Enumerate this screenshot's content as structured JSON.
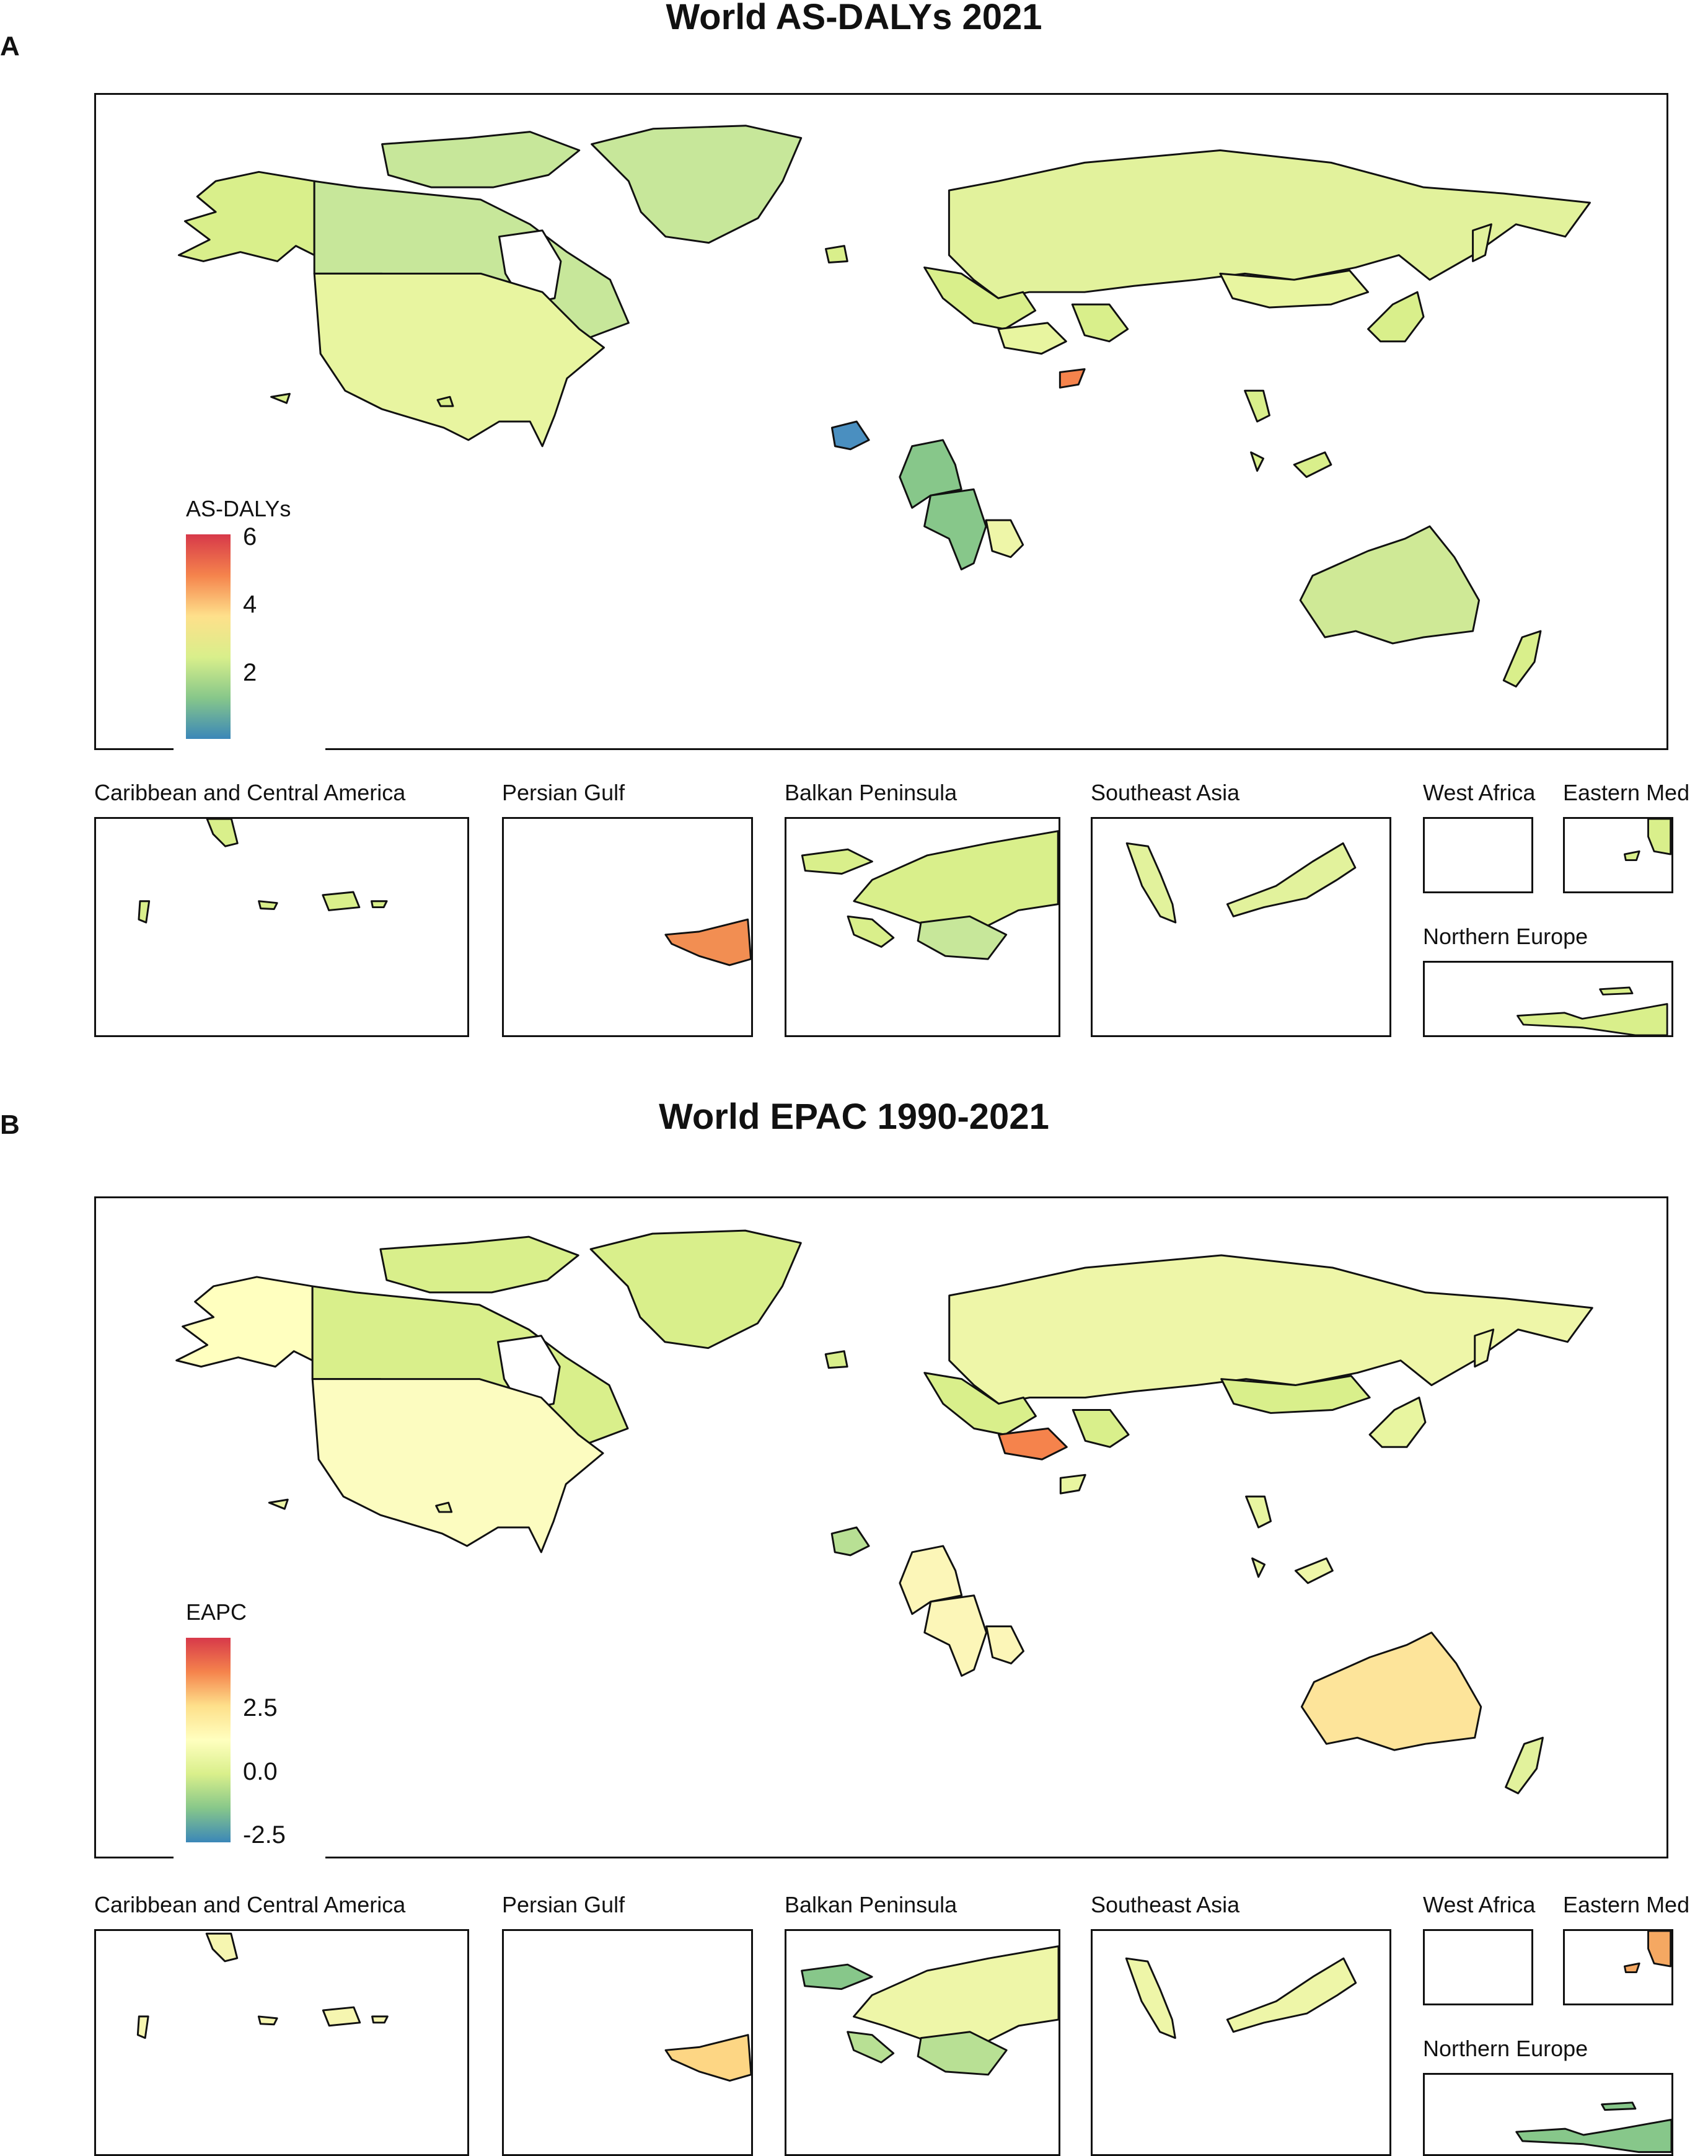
{
  "panels": [
    {
      "letter": "A",
      "title": "World AS-DALYs 2021",
      "legend": {
        "title": "AS-DALYs",
        "ticks": [
          "6",
          "4",
          "2"
        ],
        "tick_values": [
          6,
          4,
          2
        ],
        "range": [
          0,
          6
        ],
        "colors": [
          "#d7394a",
          "#f5834c",
          "#fee08b",
          "#d9ef8b",
          "#87c78a",
          "#3b87b8"
        ]
      },
      "regions": {
        "alaska": "#d9ef8b",
        "canada": "#c7e79a",
        "usa": "#e8f5a0",
        "greenland": "#c7e79a",
        "russia": "#e2f29c",
        "mongolia": "#e8f5a0",
        "japan": "#d9ef8b",
        "europe": "#d9ef8b",
        "turkey": "#e8f5a0",
        "iran": "#d9ef8b",
        "yemen": "#f5834c",
        "caribbean": "#d9ef8b",
        "west_africa": "#4a8fc0",
        "central_africa_n": "#87c78a",
        "central_africa_s": "#87c78a",
        "east_africa": "#eef6a8",
        "philippines": "#d9ef8b",
        "malaysia": "#d9ef8b",
        "australia": "#cfe996",
        "new_zealand": "#d9ef8b"
      },
      "insets": {
        "caribbean": {
          "title": "Caribbean and Central America",
          "fill": "#d9ef8b"
        },
        "persian_gulf": {
          "title": "Persian Gulf",
          "fill": "#f28e52"
        },
        "balkan": {
          "title": "Balkan Peninsula",
          "fill": "#d9ef8b"
        },
        "southeast_asia": {
          "title": "Southeast Asia",
          "fill": "#e2f29c"
        },
        "west_africa": {
          "title": "West Africa"
        },
        "eastern_med": {
          "title": "Eastern Med",
          "fill": "#d9ef8b"
        },
        "northern_europe": {
          "title": "Northern Europe",
          "fill": "#d9ef8b"
        }
      }
    },
    {
      "letter": "B",
      "title": "World EPAC 1990-2021",
      "legend": {
        "title": "EAPC",
        "ticks": [
          "2.5",
          "0.0",
          "-2.5"
        ],
        "tick_values": [
          2.5,
          0.0,
          -2.5
        ],
        "range": [
          -3,
          5
        ],
        "colors": [
          "#d7394a",
          "#f5834c",
          "#fee08b",
          "#ffffbf",
          "#d9ef8b",
          "#87c78a",
          "#3b87b8"
        ]
      },
      "regions": {
        "alaska": "#ffffbf",
        "canada": "#d9ef8b",
        "usa": "#fcfcc0",
        "greenland": "#d9ef8b",
        "russia": "#eef6a8",
        "mongolia": "#d9ef8b",
        "japan": "#e8f5a0",
        "europe": "#d9ef8b",
        "turkey": "#f5834c",
        "iran": "#d9ef8b",
        "yemen": "#e8f5a0",
        "caribbean": "#eef6a8",
        "west_africa": "#b8e094",
        "central_africa_n": "#fcf6b8",
        "central_africa_s": "#fcf6b8",
        "east_africa": "#fcf6b8",
        "philippines": "#e8f5a0",
        "malaysia": "#eef6a8",
        "australia": "#fde49a",
        "new_zealand": "#e2f29c"
      },
      "insets": {
        "caribbean": {
          "title": "Caribbean and Central America",
          "fill": "#f6f6b0"
        },
        "persian_gulf": {
          "title": "Persian Gulf",
          "fill": "#fdd684"
        },
        "balkan": {
          "title": "Balkan Peninsula",
          "fill": "#b8e094"
        },
        "southeast_asia": {
          "title": "Southeast Asia",
          "fill": "#eef6a8"
        },
        "west_africa": {
          "title": "West Africa"
        },
        "eastern_med": {
          "title": "Eastern Med",
          "fill": "#f5a862"
        },
        "northern_europe": {
          "title": "Northern Europe",
          "fill": "#87c78a"
        }
      }
    }
  ]
}
